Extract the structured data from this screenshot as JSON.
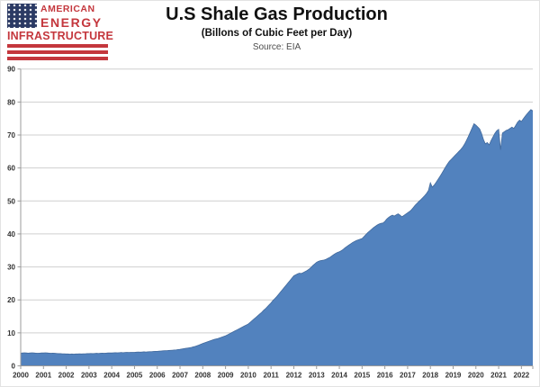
{
  "logo": {
    "line1": "AMERICAN",
    "line2": "ENERGY",
    "line3": "INFRASTRUCTURE",
    "colors": {
      "red": "#C4373D",
      "navy": "#2B3A64"
    }
  },
  "header": {
    "title": "U.S Shale Gas Production",
    "subtitle": "(Billons of Cubic Feet per Day)",
    "source": "Source:  EIA"
  },
  "chart_data": {
    "type": "area",
    "title": "U.S Shale Gas Production",
    "xlabel": "",
    "ylabel": "",
    "ylim": [
      0,
      90
    ],
    "yticks": [
      0,
      10,
      20,
      30,
      40,
      50,
      60,
      70,
      80,
      90
    ],
    "xtick_labels": [
      "2000",
      "2001",
      "2002",
      "2003",
      "2004",
      "2005",
      "2006",
      "2007",
      "2008",
      "2009",
      "2010",
      "2011",
      "2012",
      "2013",
      "2014",
      "2015",
      "2016",
      "2017",
      "2018",
      "2019",
      "2020",
      "2021",
      "2022"
    ],
    "x_frequency": "monthly",
    "x_range": [
      "2000-01",
      "2022-07"
    ],
    "grid": "horizontal",
    "legend": "none",
    "colors": {
      "area_fill": "#5282BE",
      "area_stroke": "#41699C",
      "gridline": "#CFCFCF",
      "axis": "#9B9B9B",
      "tick_label": "#333333"
    },
    "series": [
      {
        "name": "Shale gas production (Bcf/d)",
        "values": [
          3.85,
          3.9,
          3.95,
          3.9,
          3.85,
          3.9,
          3.95,
          3.9,
          3.85,
          3.8,
          3.85,
          3.9,
          3.9,
          3.95,
          3.9,
          3.85,
          3.8,
          3.85,
          3.8,
          3.75,
          3.7,
          3.7,
          3.65,
          3.65,
          3.6,
          3.6,
          3.55,
          3.6,
          3.55,
          3.6,
          3.6,
          3.65,
          3.6,
          3.65,
          3.65,
          3.7,
          3.7,
          3.75,
          3.7,
          3.75,
          3.8,
          3.75,
          3.8,
          3.85,
          3.8,
          3.85,
          3.9,
          3.9,
          3.9,
          3.95,
          4.0,
          3.95,
          4.0,
          4.05,
          4.0,
          4.05,
          4.1,
          4.05,
          4.1,
          4.1,
          4.1,
          4.15,
          4.2,
          4.15,
          4.2,
          4.25,
          4.2,
          4.25,
          4.3,
          4.3,
          4.35,
          4.4,
          4.4,
          4.45,
          4.5,
          4.55,
          4.6,
          4.6,
          4.65,
          4.7,
          4.75,
          4.8,
          4.85,
          4.95,
          5.0,
          5.1,
          5.2,
          5.3,
          5.4,
          5.5,
          5.6,
          5.75,
          5.9,
          6.1,
          6.3,
          6.55,
          6.8,
          7.0,
          7.2,
          7.4,
          7.6,
          7.8,
          8.0,
          8.15,
          8.3,
          8.5,
          8.7,
          8.9,
          9.1,
          9.4,
          9.7,
          10.0,
          10.3,
          10.6,
          10.9,
          11.2,
          11.5,
          11.8,
          12.1,
          12.4,
          12.7,
          13.2,
          13.7,
          14.2,
          14.7,
          15.2,
          15.7,
          16.2,
          16.8,
          17.3,
          17.9,
          18.5,
          19.1,
          19.8,
          20.4,
          21.0,
          21.7,
          22.4,
          23.1,
          23.8,
          24.5,
          25.2,
          25.9,
          26.6,
          27.3,
          27.6,
          27.9,
          28.1,
          28.0,
          28.3,
          28.6,
          28.9,
          29.3,
          29.8,
          30.4,
          30.9,
          31.4,
          31.7,
          31.9,
          32.0,
          32.1,
          32.3,
          32.6,
          32.9,
          33.3,
          33.7,
          34.1,
          34.4,
          34.6,
          34.9,
          35.3,
          35.8,
          36.2,
          36.6,
          37.0,
          37.4,
          37.7,
          38.0,
          38.2,
          38.4,
          38.6,
          39.2,
          39.8,
          40.4,
          40.9,
          41.4,
          41.9,
          42.3,
          42.7,
          43.0,
          43.2,
          43.3,
          43.8,
          44.5,
          45.0,
          45.4,
          45.7,
          45.4,
          45.8,
          46.1,
          45.7,
          45.2,
          45.6,
          46.0,
          46.4,
          46.8,
          47.3,
          48.0,
          48.7,
          49.3,
          49.9,
          50.4,
          51.0,
          51.6,
          52.3,
          53.2,
          55.5,
          54.2,
          54.8,
          55.6,
          56.5,
          57.4,
          58.3,
          59.3,
          60.3,
          61.2,
          62.0,
          62.6,
          63.2,
          63.8,
          64.4,
          65.0,
          65.6,
          66.3,
          67.2,
          68.3,
          69.5,
          70.8,
          72.1,
          73.4,
          73.0,
          72.4,
          71.8,
          70.4,
          68.6,
          67.3,
          67.7,
          67.0,
          68.3,
          69.4,
          70.5,
          71.3,
          71.7,
          65.5,
          70.6,
          71.0,
          71.4,
          71.6,
          72.0,
          72.4,
          72.0,
          72.9,
          73.9,
          74.5,
          74.1,
          74.9,
          75.7,
          76.4,
          77.1,
          77.7,
          77.3
        ]
      }
    ]
  }
}
